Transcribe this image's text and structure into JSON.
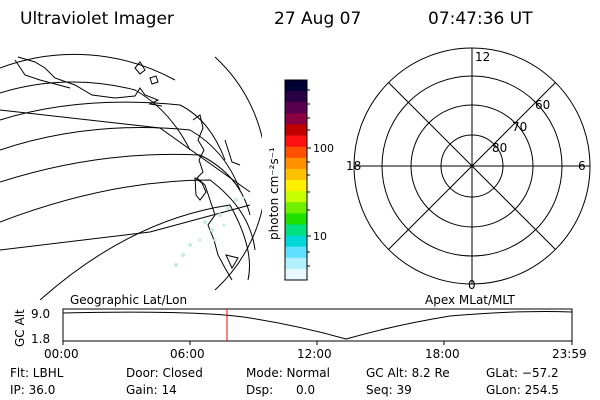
{
  "header": {
    "instrument": "Ultraviolet Imager",
    "date": "27 Aug 07",
    "time": "07:47:36 UT"
  },
  "colorbar": {
    "unit_label": "photon cm⁻²s⁻¹",
    "tick_100": "100",
    "tick_10": "10",
    "colors": [
      "#000033",
      "#2a0044",
      "#5a0050",
      "#8b0040",
      "#c00000",
      "#ff1010",
      "#ff5000",
      "#ff9000",
      "#ffc000",
      "#fff000",
      "#c8ff00",
      "#70f000",
      "#20e000",
      "#00e080",
      "#00d8d8",
      "#60e0ff",
      "#b0f0ff",
      "#e8f8ff"
    ]
  },
  "polar_plot": {
    "mlt_12": "12",
    "mlt_18": "18",
    "mlt_6": "6",
    "mlt_0": "0",
    "lat_60": "60",
    "lat_70": "70",
    "lat_80": "80"
  },
  "timeline": {
    "left_title": "Geographic Lat/Lon",
    "right_title": "Apex MLat/MLT",
    "axis_label": "GC Alt",
    "y_top": "9.0",
    "y_bottom": "1.8",
    "x_ticks": [
      "00:00",
      "06:00",
      "12:00",
      "18:00",
      "23:59"
    ],
    "marker_color": "#ff0000"
  },
  "info": {
    "filter": "Flt: LBHL",
    "ip": "IP: 36.0",
    "door": "Door: Closed",
    "gain": "Gain: 14",
    "mode": "Mode: Normal",
    "dsp": "Dsp:      0.0",
    "gc_alt": "GC Alt: 8.2 Re",
    "seq": "Seq: 39",
    "glat": "GLat: −57.2",
    "glon": "GLon: 254.5"
  }
}
